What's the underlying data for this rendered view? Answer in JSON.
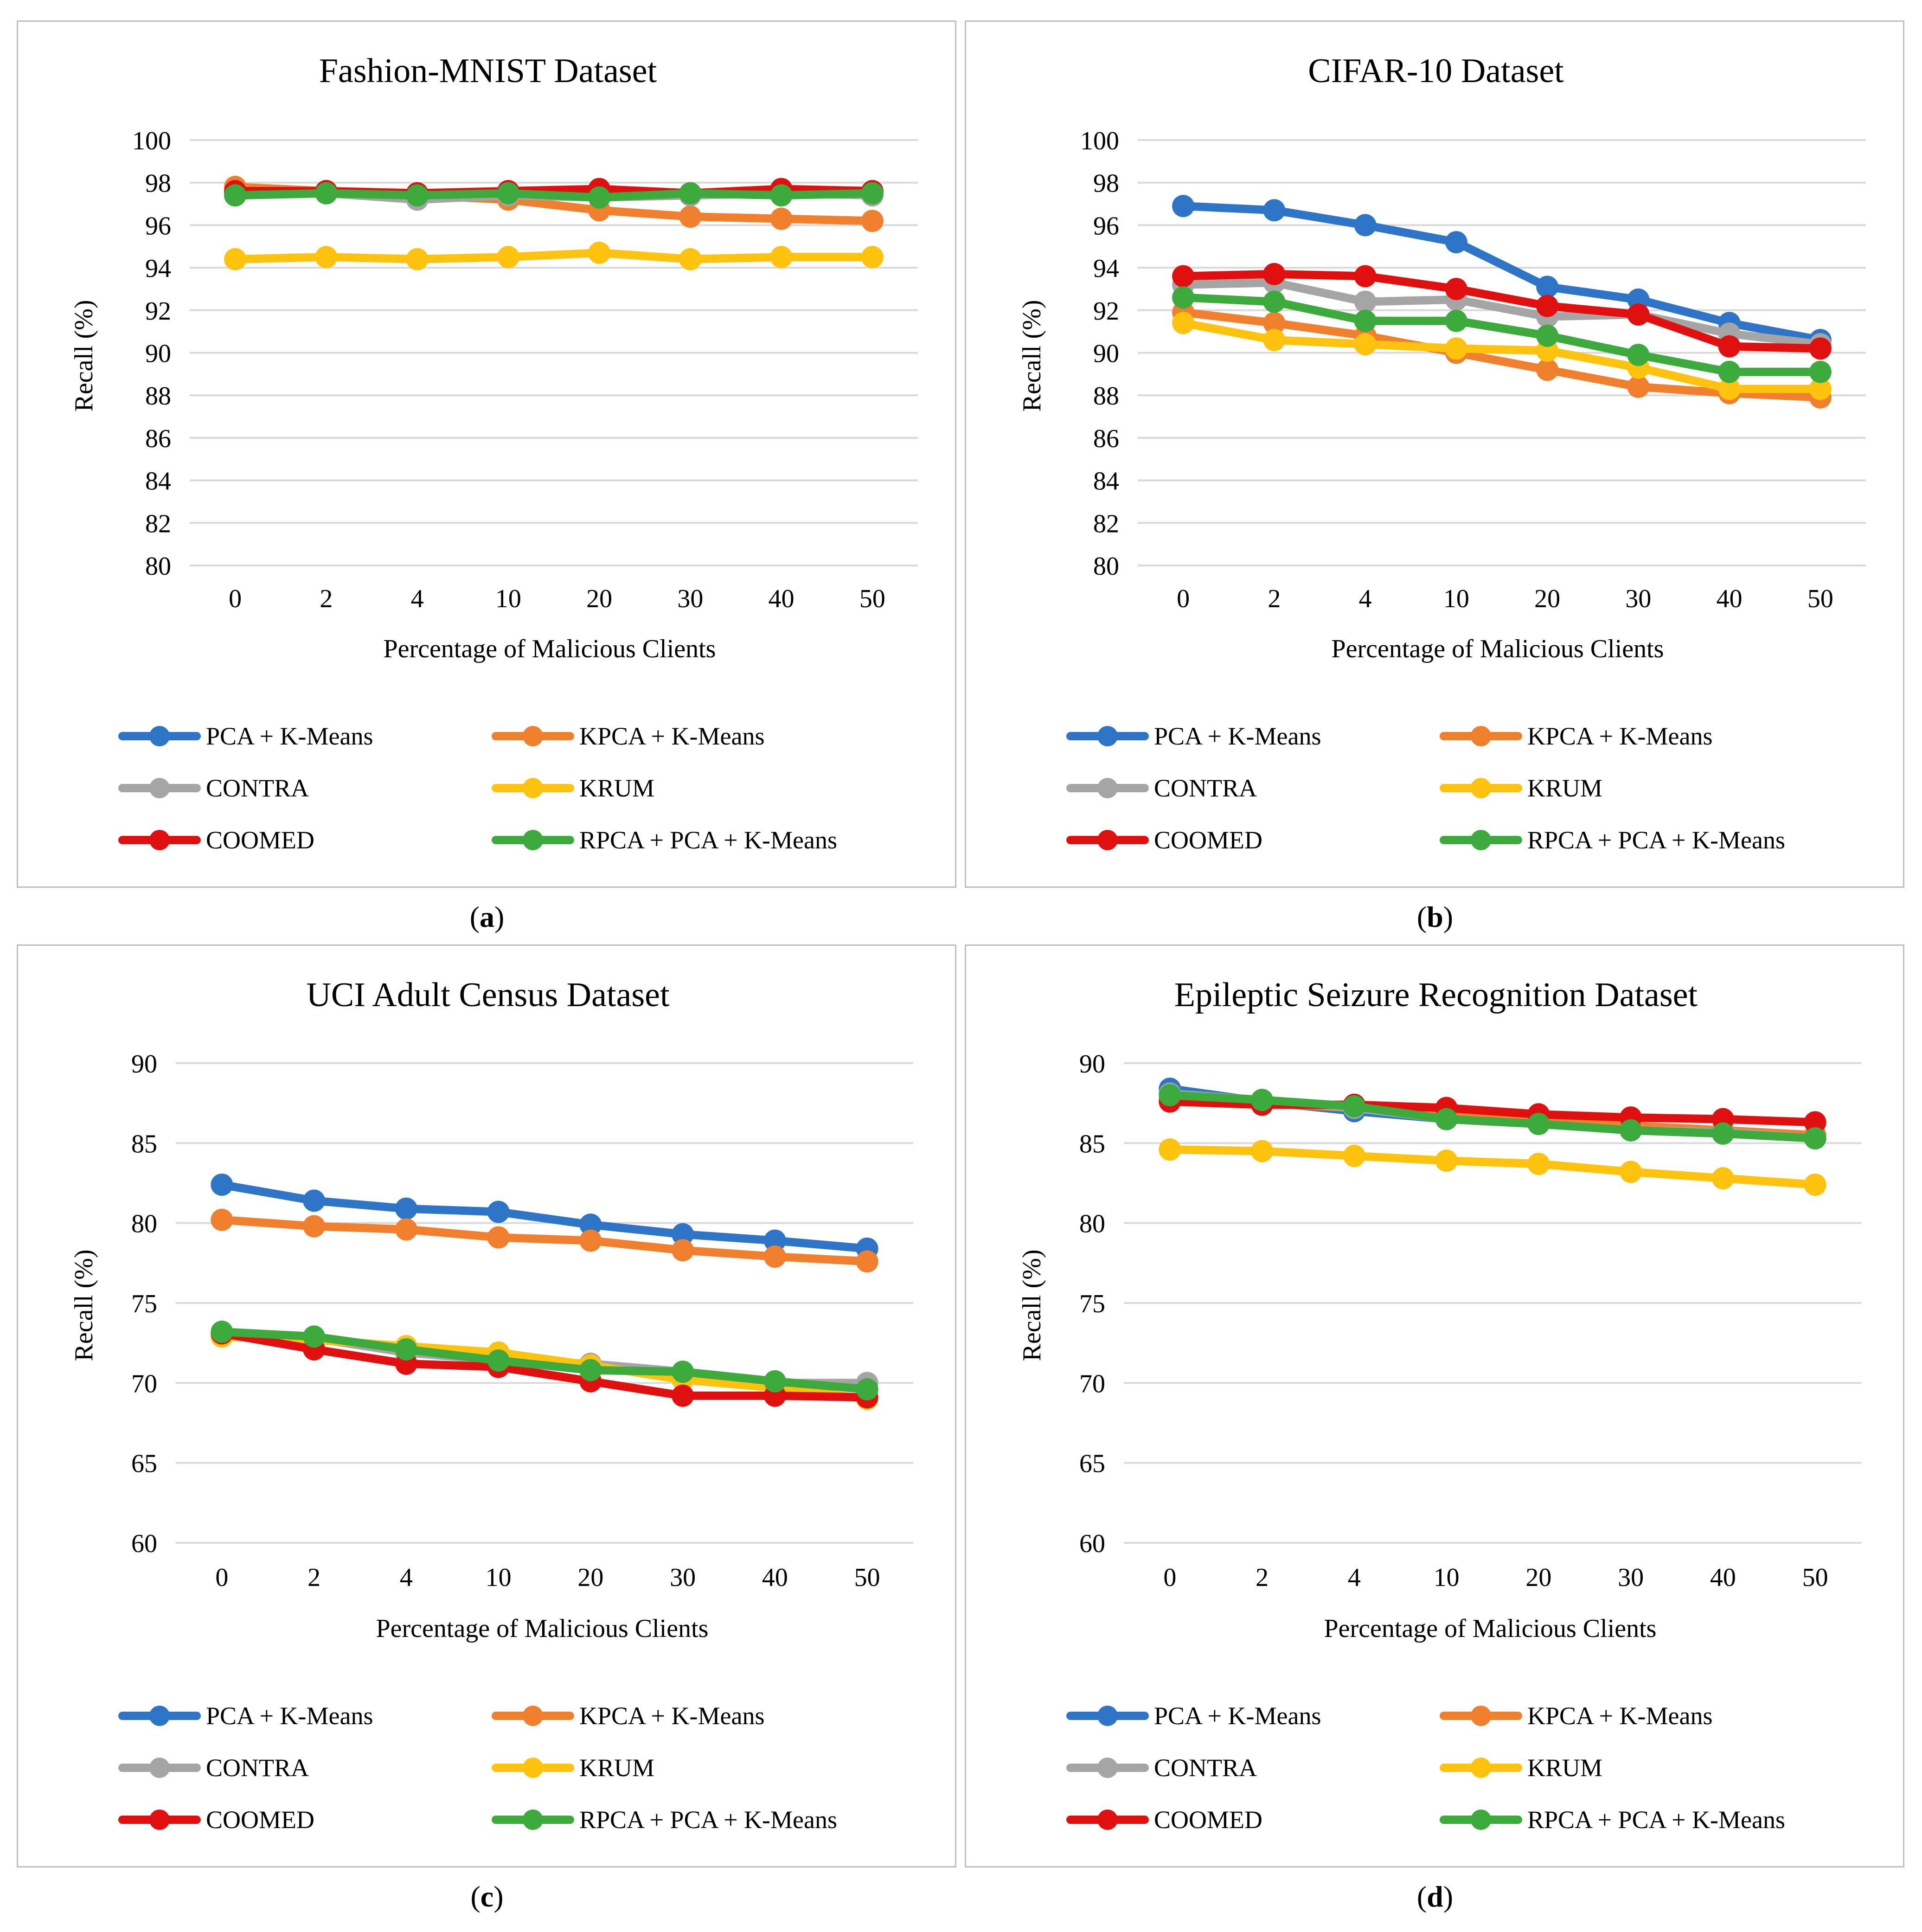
{
  "figure": {
    "captions": [
      "a",
      "b",
      "c",
      "d"
    ],
    "series_names": [
      "PCA + K-Means",
      "KPCA + K-Means",
      "CONTRA",
      "KRUM",
      "COOMED",
      "RPCA + PCA + K-Means"
    ],
    "series_colors": [
      "#2e75c8",
      "#f07f2e",
      "#a5a5a5",
      "#ffc20e",
      "#e01010",
      "#3daa3d"
    ]
  },
  "chart_data": [
    {
      "type": "line",
      "title": "Fashion-MNIST Dataset",
      "xlabel": "Percentage of Malicious Clients",
      "ylabel": "Recall (%)",
      "categories": [
        "0",
        "2",
        "4",
        "10",
        "20",
        "30",
        "40",
        "50"
      ],
      "ylim": [
        80,
        100
      ],
      "yticks": [
        "80",
        "82",
        "84",
        "86",
        "88",
        "90",
        "92",
        "94",
        "96",
        "98",
        "100"
      ],
      "series": [
        {
          "name": "PCA + K-Means",
          "values": [
            97.5,
            97.5,
            97.3,
            97.5,
            97.4,
            97.5,
            97.5,
            97.5
          ]
        },
        {
          "name": "KPCA + K-Means",
          "values": [
            97.8,
            97.6,
            97.4,
            97.2,
            96.7,
            96.4,
            96.3,
            96.2
          ]
        },
        {
          "name": "CONTRA",
          "values": [
            97.4,
            97.5,
            97.2,
            97.4,
            97.3,
            97.4,
            97.5,
            97.4
          ]
        },
        {
          "name": "KRUM",
          "values": [
            94.4,
            94.5,
            94.4,
            94.5,
            94.7,
            94.4,
            94.5,
            94.5
          ]
        },
        {
          "name": "COOMED",
          "values": [
            97.6,
            97.6,
            97.5,
            97.6,
            97.7,
            97.5,
            97.7,
            97.6
          ]
        },
        {
          "name": "RPCA + PCA + K-Means",
          "values": [
            97.4,
            97.5,
            97.4,
            97.5,
            97.3,
            97.5,
            97.4,
            97.5
          ]
        }
      ]
    },
    {
      "type": "line",
      "title": "CIFAR-10 Dataset",
      "xlabel": "Percentage of Malicious Clients",
      "ylabel": "Recall (%)",
      "categories": [
        "0",
        "2",
        "4",
        "10",
        "20",
        "30",
        "40",
        "50"
      ],
      "ylim": [
        80,
        100
      ],
      "yticks": [
        "80",
        "82",
        "84",
        "86",
        "88",
        "90",
        "92",
        "94",
        "96",
        "98",
        "100"
      ],
      "series": [
        {
          "name": "PCA + K-Means",
          "values": [
            96.9,
            96.7,
            96.0,
            95.2,
            93.1,
            92.5,
            91.4,
            90.6
          ]
        },
        {
          "name": "KPCA + K-Means",
          "values": [
            91.9,
            91.4,
            90.8,
            90.0,
            89.2,
            88.4,
            88.1,
            87.9
          ]
        },
        {
          "name": "CONTRA",
          "values": [
            93.2,
            93.3,
            92.4,
            92.5,
            91.7,
            91.8,
            90.9,
            90.4
          ]
        },
        {
          "name": "KRUM",
          "values": [
            91.4,
            90.6,
            90.4,
            90.2,
            90.1,
            89.3,
            88.3,
            88.3
          ]
        },
        {
          "name": "COOMED",
          "values": [
            93.6,
            93.7,
            93.6,
            93.0,
            92.2,
            91.8,
            90.3,
            90.2
          ]
        },
        {
          "name": "RPCA + PCA + K-Means",
          "values": [
            92.6,
            92.4,
            91.5,
            91.5,
            90.8,
            89.9,
            89.1,
            89.1
          ]
        }
      ]
    },
    {
      "type": "line",
      "title": "UCI Adult Census Dataset",
      "xlabel": "Percentage of Malicious Clients",
      "ylabel": "Recall (%)",
      "categories": [
        "0",
        "2",
        "4",
        "10",
        "20",
        "30",
        "40",
        "50"
      ],
      "ylim": [
        60,
        90
      ],
      "yticks": [
        "60",
        "65",
        "70",
        "75",
        "80",
        "85",
        "90"
      ],
      "series": [
        {
          "name": "PCA + K-Means",
          "values": [
            82.4,
            81.4,
            80.9,
            80.7,
            79.9,
            79.3,
            78.9,
            78.4
          ]
        },
        {
          "name": "KPCA + K-Means",
          "values": [
            80.2,
            79.8,
            79.6,
            79.1,
            78.9,
            78.3,
            77.9,
            77.6
          ]
        },
        {
          "name": "CONTRA",
          "values": [
            73.0,
            72.8,
            71.9,
            71.4,
            71.2,
            70.7,
            70.0,
            70.0
          ]
        },
        {
          "name": "KRUM",
          "values": [
            72.9,
            72.7,
            72.3,
            71.9,
            71.1,
            70.2,
            69.7,
            69.0
          ]
        },
        {
          "name": "COOMED",
          "values": [
            73.1,
            72.1,
            71.2,
            71.0,
            70.1,
            69.2,
            69.2,
            69.1
          ]
        },
        {
          "name": "RPCA + PCA + K-Means",
          "values": [
            73.2,
            72.9,
            72.1,
            71.4,
            70.8,
            70.7,
            70.1,
            69.6
          ]
        }
      ]
    },
    {
      "type": "line",
      "title": "Epileptic Seizure Recognition Dataset",
      "xlabel": "Percentage of Malicious Clients",
      "ylabel": "Recall (%)",
      "categories": [
        "0",
        "2",
        "4",
        "10",
        "20",
        "30",
        "40",
        "50"
      ],
      "ylim": [
        60,
        90
      ],
      "yticks": [
        "60",
        "65",
        "70",
        "75",
        "80",
        "85",
        "90"
      ],
      "series": [
        {
          "name": "PCA + K-Means",
          "values": [
            88.4,
            87.6,
            87.0,
            86.5,
            86.2,
            85.8,
            85.6,
            85.3
          ]
        },
        {
          "name": "KPCA + K-Means",
          "values": [
            87.9,
            87.5,
            87.2,
            86.7,
            86.4,
            86.1,
            85.8,
            85.5
          ]
        },
        {
          "name": "CONTRA",
          "values": [
            88.1,
            87.7,
            87.2,
            86.5,
            86.2,
            85.8,
            85.7,
            85.3
          ]
        },
        {
          "name": "KRUM",
          "values": [
            84.6,
            84.5,
            84.2,
            83.9,
            83.7,
            83.2,
            82.8,
            82.4
          ]
        },
        {
          "name": "COOMED",
          "values": [
            87.6,
            87.4,
            87.4,
            87.2,
            86.8,
            86.6,
            86.5,
            86.3
          ]
        },
        {
          "name": "RPCA + PCA + K-Means",
          "values": [
            88.0,
            87.7,
            87.3,
            86.5,
            86.2,
            85.8,
            85.6,
            85.3
          ]
        }
      ]
    }
  ]
}
